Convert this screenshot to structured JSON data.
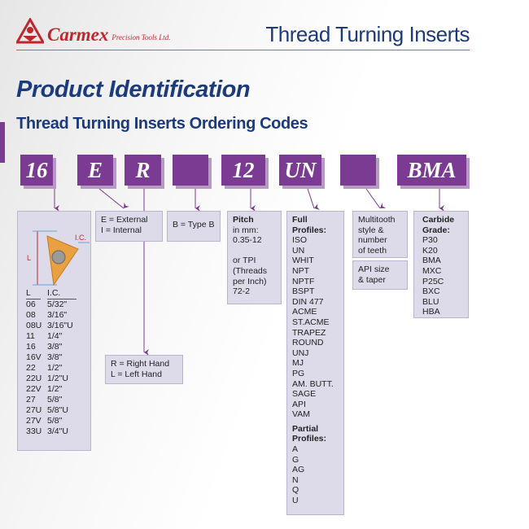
{
  "header": {
    "brand": "Carmex",
    "brand_sub": "Precision Tools Ltd.",
    "title": "Thread Turning Inserts"
  },
  "page_title": "Product Identification",
  "section_title": "Thread Turning Inserts Ordering Codes",
  "codes": [
    "16",
    "E",
    "R",
    "",
    "12",
    "UN",
    "",
    "BMA"
  ],
  "size_box": {
    "diagram_labels": {
      "l": "L",
      "ic": "I.C."
    },
    "columns": [
      "L",
      "I.C."
    ],
    "rows": [
      [
        "06",
        "5/32\""
      ],
      [
        "08",
        "3/16\""
      ],
      [
        "08U",
        "3/16\"U"
      ],
      [
        "11",
        "1/4\""
      ],
      [
        "16",
        "3/8\""
      ],
      [
        "16V",
        "3/8\""
      ],
      [
        "22",
        "1/2\""
      ],
      [
        "22U",
        "1/2\"U"
      ],
      [
        "22V",
        "1/2\""
      ],
      [
        "27",
        "5/8\""
      ],
      [
        "27U",
        "5/8\"U"
      ],
      [
        "27V",
        "5/8\""
      ],
      [
        "33U",
        "3/4\"U"
      ]
    ]
  },
  "type_box": {
    "lines": [
      "E = External",
      "I = Internal"
    ]
  },
  "hand_box": {
    "lines": [
      "R = Right Hand",
      "L = Left Hand"
    ]
  },
  "typeb_box": {
    "text": "B = Type B"
  },
  "pitch_box": {
    "title": "Pitch",
    "lines": [
      "in mm:",
      "0.35-12",
      "",
      "or TPI",
      "(Threads",
      "per Inch)",
      "72-2"
    ]
  },
  "profile_box": {
    "full_title": [
      "Full",
      "Profiles:"
    ],
    "full": [
      "ISO",
      "UN",
      "WHIT",
      "NPT",
      "NPTF",
      "BSPT",
      "DIN 477",
      "ACME",
      "ST.ACME",
      "TRAPEZ",
      "ROUND",
      "UNJ",
      "MJ",
      "PG",
      "AM. BUTT.",
      "SAGE",
      "API",
      "VAM"
    ],
    "partial_title": [
      "Partial",
      "Profiles:"
    ],
    "partial": [
      "A",
      "G",
      "AG",
      "N",
      "Q",
      "U"
    ]
  },
  "multitooth_box": {
    "lines": [
      "Multitooth",
      "style &",
      "number",
      "of teeth"
    ]
  },
  "api_box": {
    "lines": [
      "API size",
      "& taper"
    ]
  },
  "grade_box": {
    "title": [
      "Carbide",
      "Grade:"
    ],
    "grades": [
      "P30",
      "K20",
      "BMA",
      "MXC",
      "P25C",
      "BXC",
      "BLU",
      "HBA"
    ]
  },
  "colors": {
    "code_purple": "#7b3b92",
    "navy": "#1d3a7a",
    "brand_red": "#c0272d",
    "box_bg": "#dddbea"
  }
}
